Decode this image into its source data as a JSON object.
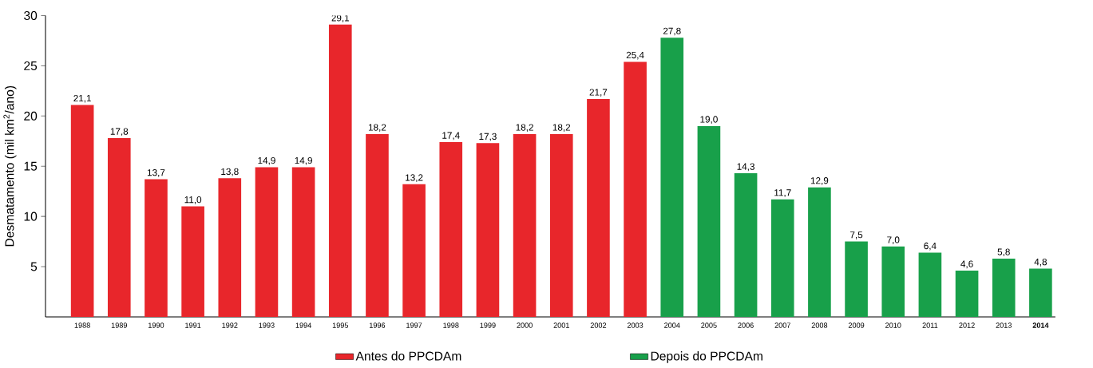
{
  "chart_data": {
    "type": "bar",
    "ylabel": "Desmatamento (mil km$^{2}$/ano)",
    "categories": [
      "1988",
      "1989",
      "1990",
      "1991",
      "1992",
      "1993",
      "1994",
      "1995",
      "1996",
      "1997",
      "1998",
      "1999",
      "2000",
      "2001",
      "2002",
      "2003",
      "2004",
      "2005",
      "2006",
      "2007",
      "2008",
      "2009",
      "2010",
      "2011",
      "2012",
      "2013",
      "**2014**"
    ],
    "series": [
      {
        "name": "Antes do PPCDAm",
        "color": "#e8262b",
        "values": [
          21.1,
          17.8,
          13.7,
          11.0,
          13.8,
          14.9,
          14.9,
          29.1,
          18.2,
          13.2,
          17.4,
          17.3,
          18.2,
          18.2,
          21.7,
          25.4,
          null,
          null,
          null,
          null,
          null,
          null,
          null,
          null,
          null,
          null,
          null
        ],
        "value_labels": [
          "21,1",
          "17,8",
          "13,7",
          "11,0",
          "13,8",
          "14,9",
          "14,9",
          "29,1",
          "18,2",
          "13,2",
          "17,4",
          "17,3",
          "18,2",
          "18,2",
          "21,7",
          "25,4",
          null,
          null,
          null,
          null,
          null,
          null,
          null,
          null,
          null,
          null,
          null
        ]
      },
      {
        "name": "Depois do PPCDAm",
        "color": "#18a04a",
        "values": [
          null,
          null,
          null,
          null,
          null,
          null,
          null,
          null,
          null,
          null,
          null,
          null,
          null,
          null,
          null,
          null,
          27.8,
          19.0,
          14.3,
          11.7,
          12.9,
          7.5,
          7.0,
          6.4,
          4.6,
          5.8,
          4.8
        ],
        "value_labels": [
          null,
          null,
          null,
          null,
          null,
          null,
          null,
          null,
          null,
          null,
          null,
          null,
          null,
          null,
          null,
          null,
          "27,8",
          "19,0",
          "14,3",
          "11,7",
          "12,9",
          "7,5",
          "7,0",
          "6,4",
          "4,6",
          "5,8",
          "4,8"
        ]
      }
    ],
    "ylim": [
      0,
      30
    ],
    "yticks": [
      5,
      10,
      15,
      20,
      25,
      30
    ],
    "legend": "bottom"
  }
}
